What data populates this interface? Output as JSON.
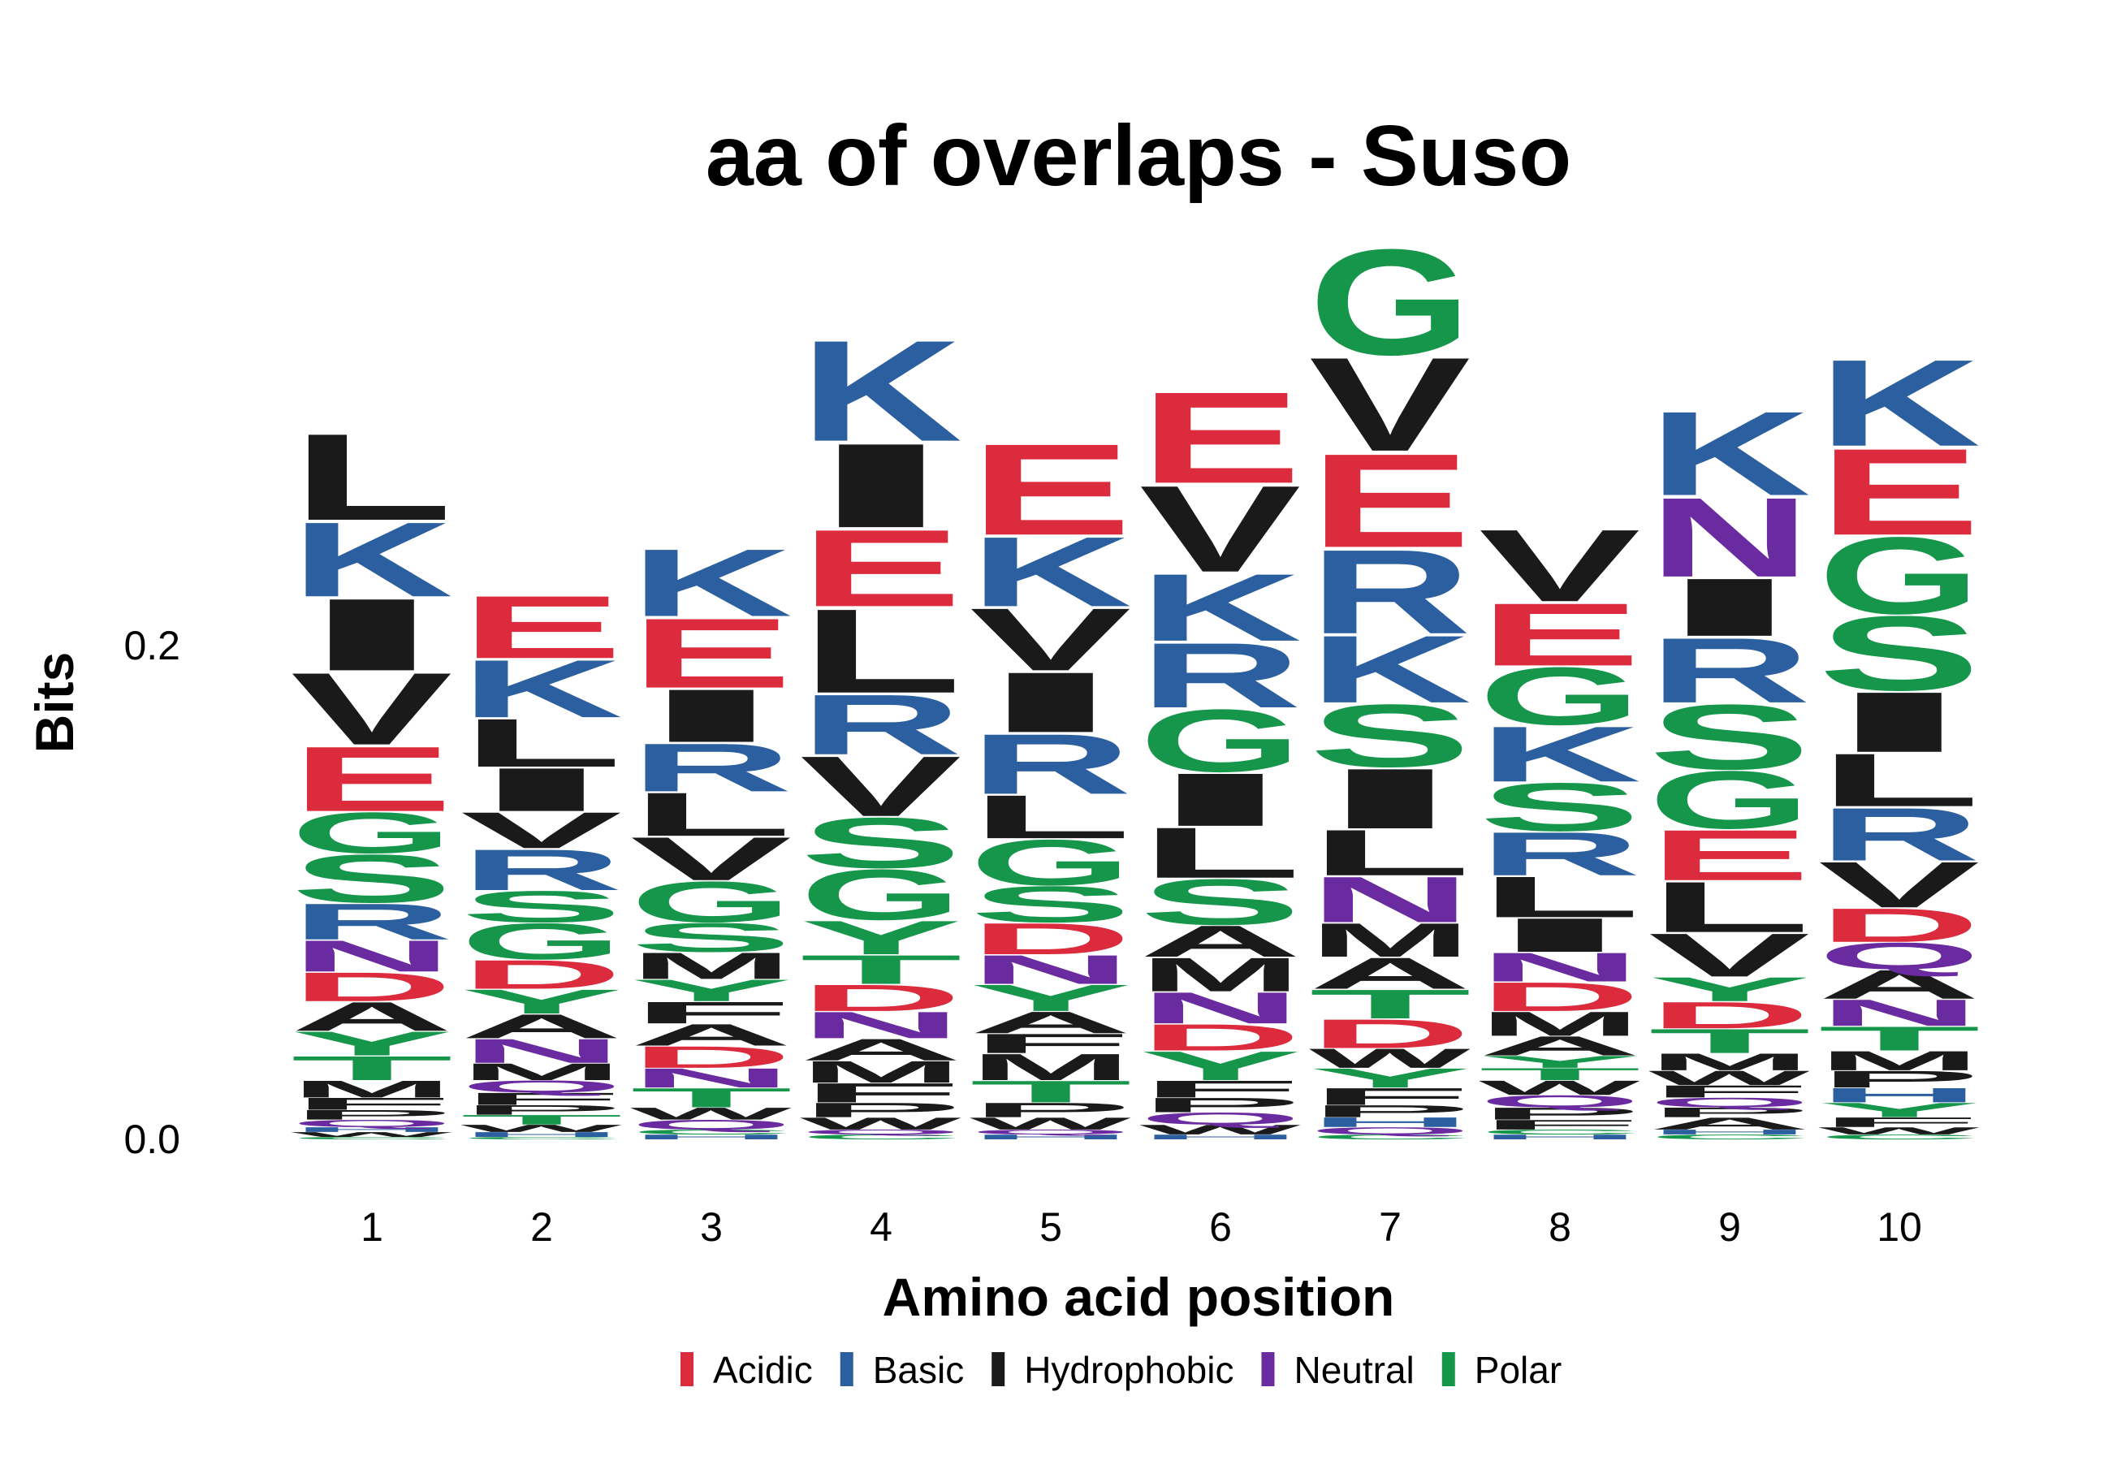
{
  "chart_data": {
    "type": "sequence-logo",
    "title": "aa of overlaps - Suso",
    "xlabel": "Amino acid position",
    "ylabel": "Bits",
    "ylim": [
      0,
      0.3
    ],
    "yticks": [
      {
        "value": 0.0,
        "label": "0.0"
      },
      {
        "value": 0.2,
        "label": "0.2"
      }
    ],
    "positions": [
      "1",
      "2",
      "3",
      "4",
      "5",
      "6",
      "7",
      "8",
      "9",
      "10"
    ],
    "groups": [
      {
        "name": "Acidic",
        "color": "#dc2b3c"
      },
      {
        "name": "Basic",
        "color": "#2c5fa0"
      },
      {
        "name": "Hydrophobic",
        "color": "#1a1a1a"
      },
      {
        "name": "Neutral",
        "color": "#6a2aa0"
      },
      {
        "name": "Polar",
        "color": "#16964a"
      }
    ],
    "residue_groups": {
      "D": "Acidic",
      "E": "Acidic",
      "K": "Basic",
      "R": "Basic",
      "H": "Basic",
      "A": "Hydrophobic",
      "V": "Hydrophobic",
      "L": "Hydrophobic",
      "I": "Hydrophobic",
      "M": "Hydrophobic",
      "F": "Hydrophobic",
      "W": "Hydrophobic",
      "P": "Hydrophobic",
      "N": "Neutral",
      "Q": "Neutral",
      "G": "Polar",
      "S": "Polar",
      "T": "Polar",
      "Y": "Polar",
      "C": "Polar"
    },
    "stacks": [
      {
        "position": "1",
        "letters": [
          {
            "aa": "C",
            "bits": 0.001
          },
          {
            "aa": "W",
            "bits": 0.002
          },
          {
            "aa": "H",
            "bits": 0.002
          },
          {
            "aa": "Q",
            "bits": 0.003
          },
          {
            "aa": "P",
            "bits": 0.004
          },
          {
            "aa": "F",
            "bits": 0.005
          },
          {
            "aa": "M",
            "bits": 0.007
          },
          {
            "aa": "T",
            "bits": 0.01
          },
          {
            "aa": "Y",
            "bits": 0.01
          },
          {
            "aa": "A",
            "bits": 0.012
          },
          {
            "aa": "D",
            "bits": 0.012
          },
          {
            "aa": "N",
            "bits": 0.013
          },
          {
            "aa": "R",
            "bits": 0.015
          },
          {
            "aa": "S",
            "bits": 0.02
          },
          {
            "aa": "G",
            "bits": 0.017
          },
          {
            "aa": "E",
            "bits": 0.027
          },
          {
            "aa": "V",
            "bits": 0.03
          },
          {
            "aa": "I",
            "bits": 0.03
          },
          {
            "aa": "K",
            "bits": 0.031
          },
          {
            "aa": "L",
            "bits": 0.036
          }
        ]
      },
      {
        "position": "2",
        "letters": [
          {
            "aa": "C",
            "bits": 0.001
          },
          {
            "aa": "H",
            "bits": 0.002
          },
          {
            "aa": "W",
            "bits": 0.003
          },
          {
            "aa": "T",
            "bits": 0.004
          },
          {
            "aa": "P",
            "bits": 0.004
          },
          {
            "aa": "F",
            "bits": 0.005
          },
          {
            "aa": "Q",
            "bits": 0.005
          },
          {
            "aa": "M",
            "bits": 0.007
          },
          {
            "aa": "N",
            "bits": 0.01
          },
          {
            "aa": "A",
            "bits": 0.01
          },
          {
            "aa": "Y",
            "bits": 0.01
          },
          {
            "aa": "D",
            "bits": 0.012
          },
          {
            "aa": "G",
            "bits": 0.015
          },
          {
            "aa": "S",
            "bits": 0.013
          },
          {
            "aa": "R",
            "bits": 0.017
          },
          {
            "aa": "V",
            "bits": 0.015
          },
          {
            "aa": "I",
            "bits": 0.018
          },
          {
            "aa": "L",
            "bits": 0.02
          },
          {
            "aa": "K",
            "bits": 0.024
          },
          {
            "aa": "E",
            "bits": 0.026
          }
        ]
      },
      {
        "position": "3",
        "letters": [
          {
            "aa": "H",
            "bits": 0.002
          },
          {
            "aa": "C",
            "bits": 0.002
          },
          {
            "aa": "Q",
            "bits": 0.004
          },
          {
            "aa": "W",
            "bits": 0.005
          },
          {
            "aa": "T",
            "bits": 0.008
          },
          {
            "aa": "N",
            "bits": 0.008
          },
          {
            "aa": "D",
            "bits": 0.009
          },
          {
            "aa": "A",
            "bits": 0.009
          },
          {
            "aa": "F",
            "bits": 0.009
          },
          {
            "aa": "Y",
            "bits": 0.009
          },
          {
            "aa": "M",
            "bits": 0.011
          },
          {
            "aa": "S",
            "bits": 0.012
          },
          {
            "aa": "G",
            "bits": 0.017
          },
          {
            "aa": "V",
            "bits": 0.018
          },
          {
            "aa": "L",
            "bits": 0.018
          },
          {
            "aa": "R",
            "bits": 0.02
          },
          {
            "aa": "I",
            "bits": 0.022
          },
          {
            "aa": "E",
            "bits": 0.029
          },
          {
            "aa": "K",
            "bits": 0.028
          }
        ]
      },
      {
        "position": "4",
        "letters": [
          {
            "aa": "C",
            "bits": 0.002
          },
          {
            "aa": "Q",
            "bits": 0.002
          },
          {
            "aa": "W",
            "bits": 0.005
          },
          {
            "aa": "P",
            "bits": 0.006
          },
          {
            "aa": "F",
            "bits": 0.008
          },
          {
            "aa": "M",
            "bits": 0.009
          },
          {
            "aa": "A",
            "bits": 0.009
          },
          {
            "aa": "N",
            "bits": 0.011
          },
          {
            "aa": "D",
            "bits": 0.011
          },
          {
            "aa": "T",
            "bits": 0.012
          },
          {
            "aa": "Y",
            "bits": 0.014
          },
          {
            "aa": "G",
            "bits": 0.021
          },
          {
            "aa": "S",
            "bits": 0.021
          },
          {
            "aa": "V",
            "bits": 0.025
          },
          {
            "aa": "R",
            "bits": 0.025
          },
          {
            "aa": "L",
            "bits": 0.035
          },
          {
            "aa": "E",
            "bits": 0.032
          },
          {
            "aa": "I",
            "bits": 0.035
          },
          {
            "aa": "K",
            "bits": 0.042
          }
        ]
      },
      {
        "position": "5",
        "letters": [
          {
            "aa": "H",
            "bits": 0.002
          },
          {
            "aa": "Q",
            "bits": 0.002
          },
          {
            "aa": "W",
            "bits": 0.005
          },
          {
            "aa": "P",
            "bits": 0.006
          },
          {
            "aa": "T",
            "bits": 0.009
          },
          {
            "aa": "M",
            "bits": 0.011
          },
          {
            "aa": "F",
            "bits": 0.008
          },
          {
            "aa": "A",
            "bits": 0.009
          },
          {
            "aa": "Y",
            "bits": 0.011
          },
          {
            "aa": "N",
            "bits": 0.012
          },
          {
            "aa": "D",
            "bits": 0.013
          },
          {
            "aa": "S",
            "bits": 0.015
          },
          {
            "aa": "G",
            "bits": 0.019
          },
          {
            "aa": "L",
            "bits": 0.018
          },
          {
            "aa": "R",
            "bits": 0.025
          },
          {
            "aa": "I",
            "bits": 0.025
          },
          {
            "aa": "V",
            "bits": 0.026
          },
          {
            "aa": "K",
            "bits": 0.029
          },
          {
            "aa": "E",
            "bits": 0.038
          }
        ]
      },
      {
        "position": "6",
        "letters": [
          {
            "aa": "H",
            "bits": 0.002
          },
          {
            "aa": "W",
            "bits": 0.004
          },
          {
            "aa": "Q",
            "bits": 0.005
          },
          {
            "aa": "P",
            "bits": 0.006
          },
          {
            "aa": "F",
            "bits": 0.007
          },
          {
            "aa": "Y",
            "bits": 0.012
          },
          {
            "aa": "D",
            "bits": 0.011
          },
          {
            "aa": "N",
            "bits": 0.013
          },
          {
            "aa": "M",
            "bits": 0.014
          },
          {
            "aa": "A",
            "bits": 0.013
          },
          {
            "aa": "S",
            "bits": 0.019
          },
          {
            "aa": "L",
            "bits": 0.021
          },
          {
            "aa": "I",
            "bits": 0.022
          },
          {
            "aa": "G",
            "bits": 0.026
          },
          {
            "aa": "R",
            "bits": 0.027
          },
          {
            "aa": "K",
            "bits": 0.028
          },
          {
            "aa": "V",
            "bits": 0.036
          },
          {
            "aa": "E",
            "bits": 0.038
          }
        ]
      },
      {
        "position": "7",
        "letters": [
          {
            "aa": "C",
            "bits": 0.002
          },
          {
            "aa": "Q",
            "bits": 0.003
          },
          {
            "aa": "H",
            "bits": 0.004
          },
          {
            "aa": "P",
            "bits": 0.005
          },
          {
            "aa": "F",
            "bits": 0.007
          },
          {
            "aa": "Y",
            "bits": 0.008
          },
          {
            "aa": "W",
            "bits": 0.008
          },
          {
            "aa": "D",
            "bits": 0.012
          },
          {
            "aa": "T",
            "bits": 0.012
          },
          {
            "aa": "A",
            "bits": 0.013
          },
          {
            "aa": "M",
            "bits": 0.014
          },
          {
            "aa": "N",
            "bits": 0.019
          },
          {
            "aa": "L",
            "bits": 0.019
          },
          {
            "aa": "I",
            "bits": 0.025
          },
          {
            "aa": "S",
            "bits": 0.026
          },
          {
            "aa": "K",
            "bits": 0.028
          },
          {
            "aa": "R",
            "bits": 0.035
          },
          {
            "aa": "E",
            "bits": 0.039
          },
          {
            "aa": "V",
            "bits": 0.039
          },
          {
            "aa": "G",
            "bits": 0.044
          }
        ]
      },
      {
        "position": "8",
        "letters": [
          {
            "aa": "H",
            "bits": 0.002
          },
          {
            "aa": "C",
            "bits": 0.002
          },
          {
            "aa": "F",
            "bits": 0.004
          },
          {
            "aa": "P",
            "bits": 0.005
          },
          {
            "aa": "Q",
            "bits": 0.005
          },
          {
            "aa": "W",
            "bits": 0.006
          },
          {
            "aa": "T",
            "bits": 0.005
          },
          {
            "aa": "Y",
            "bits": 0.005
          },
          {
            "aa": "A",
            "bits": 0.008
          },
          {
            "aa": "M",
            "bits": 0.01
          },
          {
            "aa": "D",
            "bits": 0.012
          },
          {
            "aa": "N",
            "bits": 0.012
          },
          {
            "aa": "I",
            "bits": 0.014
          },
          {
            "aa": "L",
            "bits": 0.017
          },
          {
            "aa": "R",
            "bits": 0.018
          },
          {
            "aa": "S",
            "bits": 0.02
          },
          {
            "aa": "K",
            "bits": 0.023
          },
          {
            "aa": "G",
            "bits": 0.024
          },
          {
            "aa": "E",
            "bits": 0.026
          },
          {
            "aa": "V",
            "bits": 0.03
          }
        ]
      },
      {
        "position": "9",
        "letters": [
          {
            "aa": "C",
            "bits": 0.002
          },
          {
            "aa": "H",
            "bits": 0.002
          },
          {
            "aa": "A",
            "bits": 0.005
          },
          {
            "aa": "P",
            "bits": 0.004
          },
          {
            "aa": "Q",
            "bits": 0.004
          },
          {
            "aa": "F",
            "bits": 0.005
          },
          {
            "aa": "W",
            "bits": 0.006
          },
          {
            "aa": "M",
            "bits": 0.007
          },
          {
            "aa": "T",
            "bits": 0.01
          },
          {
            "aa": "D",
            "bits": 0.011
          },
          {
            "aa": "Y",
            "bits": 0.01
          },
          {
            "aa": "V",
            "bits": 0.018
          },
          {
            "aa": "L",
            "bits": 0.021
          },
          {
            "aa": "E",
            "bits": 0.021
          },
          {
            "aa": "G",
            "bits": 0.024
          },
          {
            "aa": "S",
            "bits": 0.027
          },
          {
            "aa": "R",
            "bits": 0.027
          },
          {
            "aa": "I",
            "bits": 0.024
          },
          {
            "aa": "N",
            "bits": 0.033
          },
          {
            "aa": "K",
            "bits": 0.035
          }
        ]
      },
      {
        "position": "10",
        "letters": [
          {
            "aa": "C",
            "bits": 0.002
          },
          {
            "aa": "W",
            "bits": 0.003
          },
          {
            "aa": "F",
            "bits": 0.004
          },
          {
            "aa": "Y",
            "bits": 0.006
          },
          {
            "aa": "H",
            "bits": 0.006
          },
          {
            "aa": "P",
            "bits": 0.007
          },
          {
            "aa": "M",
            "bits": 0.008
          },
          {
            "aa": "T",
            "bits": 0.01
          },
          {
            "aa": "N",
            "bits": 0.011
          },
          {
            "aa": "A",
            "bits": 0.012
          },
          {
            "aa": "Q",
            "bits": 0.011
          },
          {
            "aa": "D",
            "bits": 0.014
          },
          {
            "aa": "V",
            "bits": 0.019
          },
          {
            "aa": "R",
            "bits": 0.022
          },
          {
            "aa": "L",
            "bits": 0.022
          },
          {
            "aa": "I",
            "bits": 0.025
          },
          {
            "aa": "S",
            "bits": 0.031
          },
          {
            "aa": "G",
            "bits": 0.032
          },
          {
            "aa": "E",
            "bits": 0.036
          },
          {
            "aa": "K",
            "bits": 0.036
          }
        ]
      }
    ]
  }
}
